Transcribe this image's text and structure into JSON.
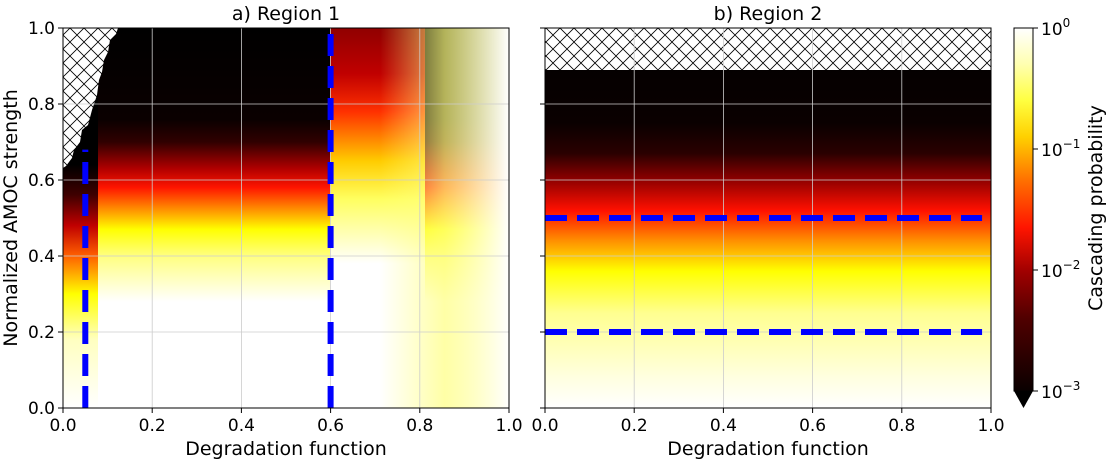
{
  "chart_data": [
    {
      "type": "heatmap",
      "title": "a) Region 1",
      "xlabel": "Degradation function",
      "ylabel": "Normalized AMOC strength",
      "xlim": [
        0,
        1
      ],
      "ylim": [
        0,
        1
      ],
      "xticks": [
        "0.0",
        "0.2",
        "0.4",
        "0.6",
        "0.8",
        "1.0"
      ],
      "yticks": [
        "0.0",
        "0.2",
        "0.4",
        "0.6",
        "0.8",
        "1.0"
      ],
      "grid": true,
      "hatched_region": "top-left: no data (degradation 0.0–0.12, AMOC 0.63–1.0)",
      "reference_lines": [
        {
          "orientation": "vertical",
          "x": 0.05,
          "y_range": [
            0,
            0.68
          ],
          "color": "#0000ff",
          "style": "dashed"
        },
        {
          "orientation": "vertical",
          "x": 0.6,
          "y_range": [
            0,
            1.0
          ],
          "color": "#0000ff",
          "style": "dashed"
        }
      ]
    },
    {
      "type": "heatmap",
      "title": "b) Region 2",
      "xlabel": "Degradation function",
      "ylabel": "",
      "xlim": [
        0,
        1
      ],
      "ylim": [
        0,
        1
      ],
      "xticks": [
        "0.0",
        "0.2",
        "0.4",
        "0.6",
        "0.8",
        "1.0"
      ],
      "yticks": [
        "",
        "",
        "",
        "",
        "",
        ""
      ],
      "grid": true,
      "hatched_region": "top band: no data (AMOC 0.89–1.0)",
      "reference_lines": [
        {
          "orientation": "horizontal",
          "y": 0.5,
          "x_range": [
            0,
            0.98
          ],
          "color": "#0000ff",
          "style": "dashed"
        },
        {
          "orientation": "horizontal",
          "y": 0.2,
          "x_range": [
            0,
            0.98
          ],
          "color": "#0000ff",
          "style": "dashed"
        }
      ]
    }
  ],
  "colorbar": {
    "label": "Cascading probability",
    "colormap": "hot",
    "scale": "log",
    "range": [
      0.001,
      1
    ],
    "ticks": [
      {
        "base": "10",
        "exp": "0"
      },
      {
        "base": "10",
        "exp": "−1"
      },
      {
        "base": "10",
        "exp": "−2"
      },
      {
        "base": "10",
        "exp": "−3"
      }
    ],
    "extend": "min"
  },
  "colors": {
    "reference_lines": "#0000ff",
    "grid": "#cccccc"
  }
}
